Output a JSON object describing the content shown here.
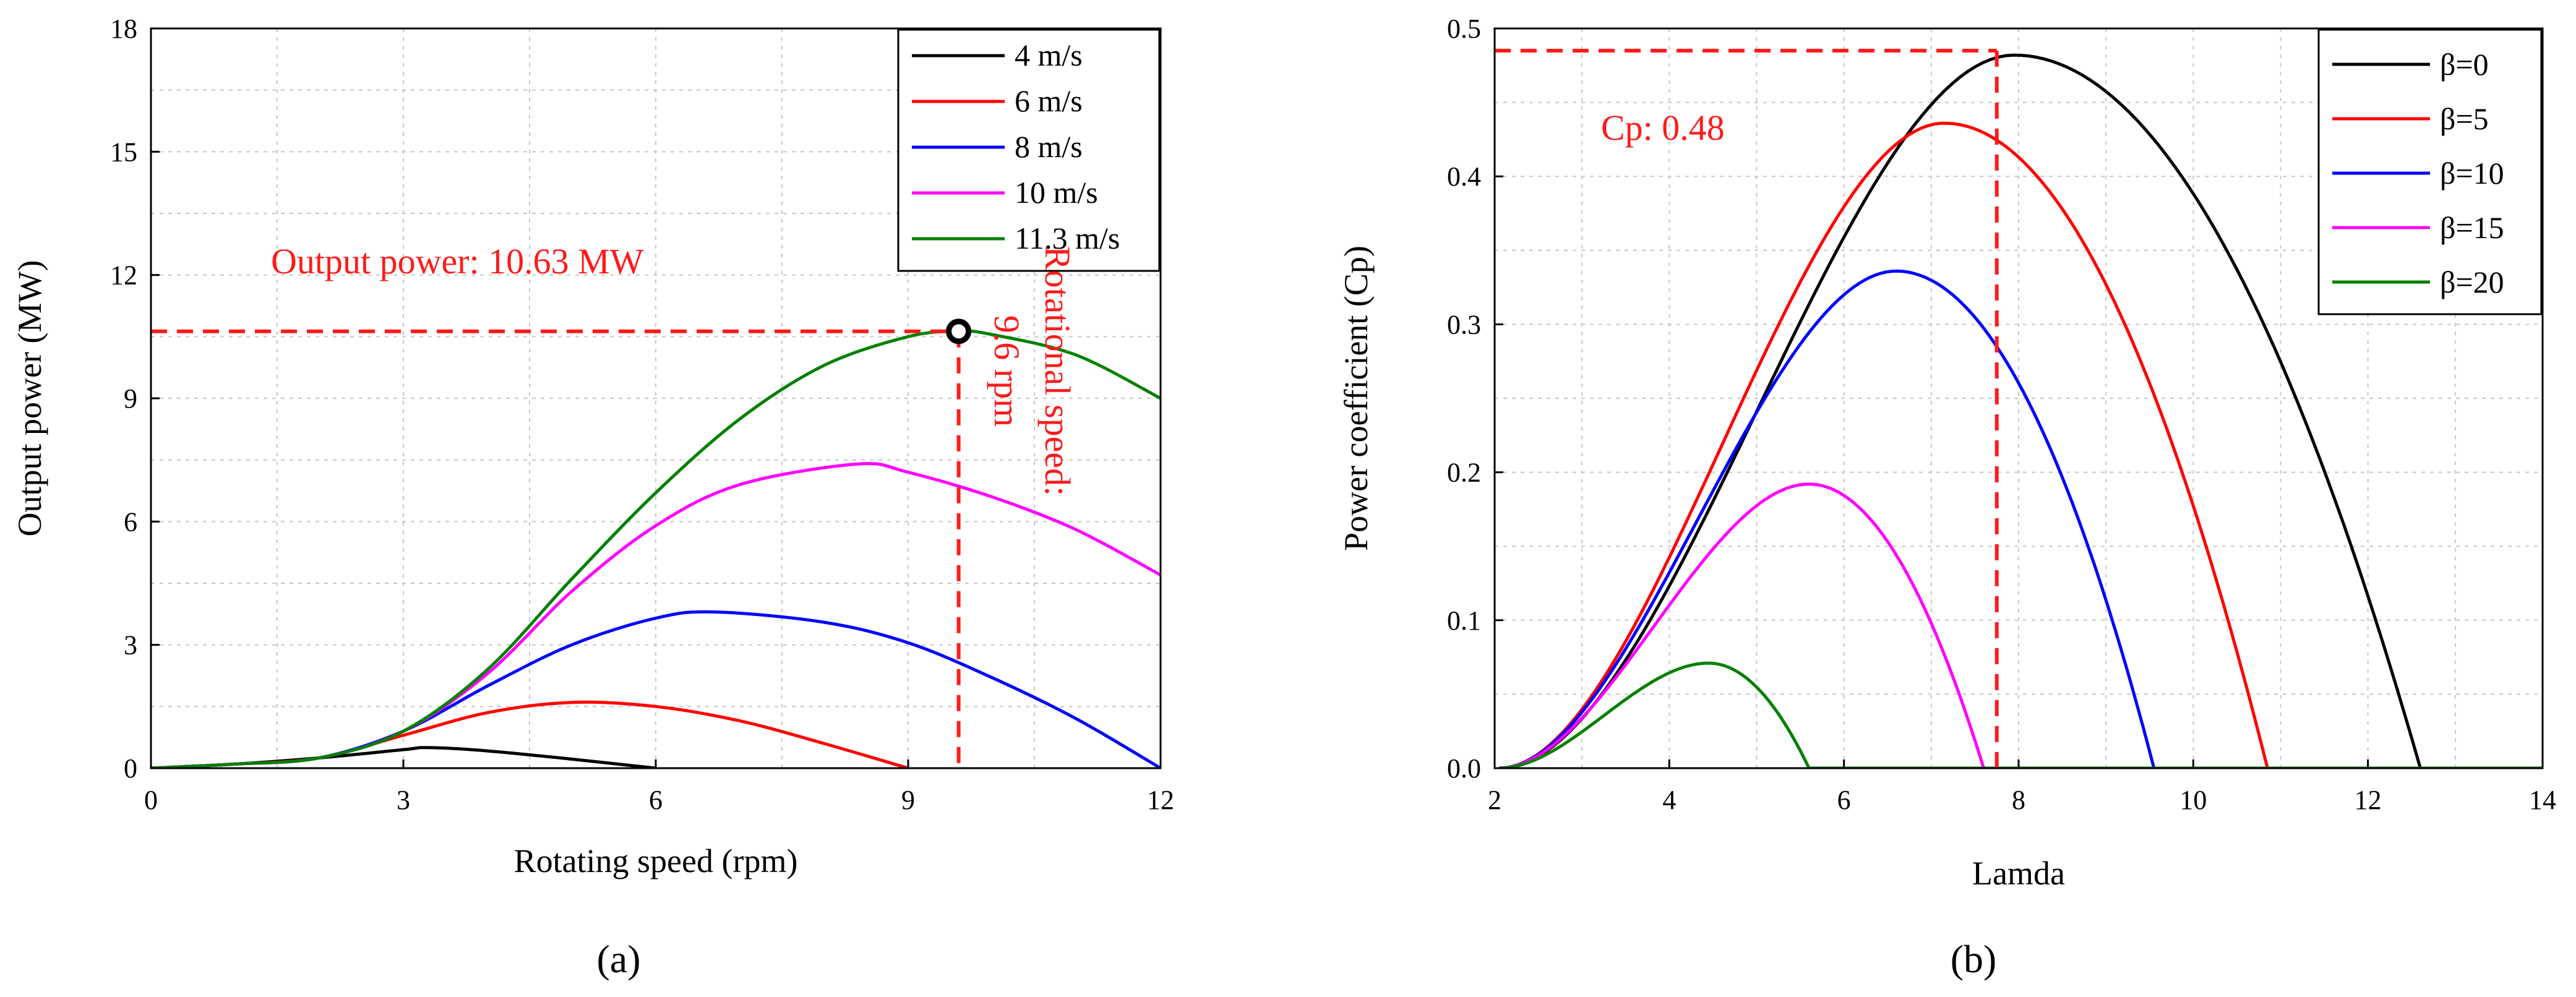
{
  "panel_labels": {
    "a": "(a)",
    "b": "(b)"
  },
  "chart_data": [
    {
      "type": "line",
      "panel": "a",
      "xlabel": "Rotating speed (rpm)",
      "ylabel": "Output power (MW)",
      "xlim": [
        0,
        12
      ],
      "ylim": [
        0,
        18
      ],
      "xticks": [
        0,
        3,
        6,
        9,
        12
      ],
      "yticks": [
        0,
        3,
        6,
        9,
        12,
        15,
        18
      ],
      "grid": true,
      "legend_position": "top-right",
      "series": [
        {
          "name": "4 m/s",
          "color": "#000000",
          "peak_x": 3.3,
          "peak_y": 0.5,
          "x": [
            0,
            1,
            2,
            3,
            3.3,
            4,
            5,
            6
          ],
          "y": [
            0,
            0.1,
            0.25,
            0.45,
            0.5,
            0.42,
            0.22,
            0
          ]
        },
        {
          "name": "6 m/s",
          "color": "#ff0000",
          "peak_x": 5.0,
          "peak_y": 1.6,
          "x": [
            0,
            1,
            2,
            3,
            4,
            5,
            6,
            7,
            8,
            9
          ],
          "y": [
            0,
            0.1,
            0.25,
            0.8,
            1.35,
            1.6,
            1.5,
            1.15,
            0.6,
            0
          ]
        },
        {
          "name": "8 m/s",
          "color": "#0000ff",
          "peak_x": 6.7,
          "peak_y": 3.8,
          "x": [
            0,
            1,
            2,
            3,
            4,
            5,
            6,
            6.7,
            8,
            9,
            10,
            11,
            12
          ],
          "y": [
            0,
            0.1,
            0.25,
            0.9,
            2.0,
            3.0,
            3.65,
            3.8,
            3.55,
            3.05,
            2.2,
            1.2,
            0
          ]
        },
        {
          "name": "10 m/s",
          "color": "#ff00ff",
          "peak_x": 8.4,
          "peak_y": 7.4,
          "x": [
            0,
            1,
            2,
            3,
            4,
            5,
            6,
            7,
            8.4,
            9,
            10,
            11,
            12
          ],
          "y": [
            0,
            0.1,
            0.25,
            0.9,
            2.3,
            4.3,
            5.9,
            6.9,
            7.4,
            7.2,
            6.6,
            5.8,
            4.7
          ]
        },
        {
          "name": "11.3 m/s",
          "color": "#008000",
          "peak_x": 9.6,
          "peak_y": 10.63,
          "x": [
            0,
            1,
            2,
            3,
            4,
            5,
            6,
            7,
            8,
            9,
            9.6,
            10,
            11,
            12
          ],
          "y": [
            0,
            0.1,
            0.25,
            0.9,
            2.4,
            4.6,
            6.7,
            8.5,
            9.8,
            10.5,
            10.63,
            10.55,
            10.05,
            9.0
          ]
        }
      ],
      "annotations": [
        {
          "text": "Output power: 10.63 MW",
          "x": 1.4,
          "y": 11.8
        },
        {
          "text": "Rotational speed:",
          "x": 10.7,
          "y": 5.9
        },
        {
          "text": "9.6 rpm",
          "x": 10.1,
          "y": 5.9
        }
      ],
      "marker": {
        "x": 9.6,
        "y": 10.63
      },
      "ref_lines": {
        "x": 9.6,
        "y": 10.63
      }
    },
    {
      "type": "line",
      "panel": "b",
      "xlabel": "Lamda",
      "ylabel": "Power coefficient (Cp)",
      "xlim": [
        2,
        14
      ],
      "ylim": [
        0,
        0.5
      ],
      "xticks": [
        2,
        4,
        6,
        8,
        10,
        12,
        14
      ],
      "yticks": [
        0.0,
        0.1,
        0.2,
        0.3,
        0.4,
        0.5
      ],
      "ytick_labels": [
        "0.0",
        "0.1",
        "0.2",
        "0.3",
        "0.4",
        "0.5"
      ],
      "grid": true,
      "legend_position": "top-right",
      "series": [
        {
          "name": "β=0",
          "color": "#000000",
          "peak_x": 7.95,
          "peak_y": 0.482,
          "end_x": 12.6
        },
        {
          "name": "β=5",
          "color": "#ff0000",
          "peak_x": 7.15,
          "peak_y": 0.436,
          "end_x": 10.85
        },
        {
          "name": "β=10",
          "color": "#0000ff",
          "peak_x": 6.6,
          "peak_y": 0.336,
          "end_x": 9.55
        },
        {
          "name": "β=15",
          "color": "#ff00ff",
          "peak_x": 5.6,
          "peak_y": 0.192,
          "end_x": 7.6
        },
        {
          "name": "β=20",
          "color": "#008000",
          "peak_x": 4.45,
          "peak_y": 0.071,
          "end_x": 5.6
        }
      ],
      "annotations": [
        {
          "text": "Cp: 0.48",
          "x": 3.3,
          "y": 0.445
        }
      ],
      "ref_lines": {
        "x": 7.75,
        "y": 0.485
      }
    }
  ]
}
